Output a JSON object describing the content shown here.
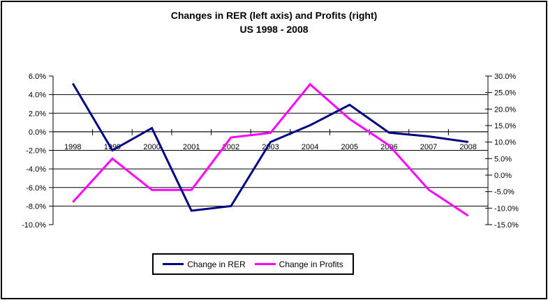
{
  "title": {
    "line1": "Changes in RER (left axis) and Profits (right)",
    "line2": "US 1998 - 2008"
  },
  "chart_data": {
    "type": "line",
    "categories": [
      "1998",
      "1999",
      "2000",
      "2001",
      "2002",
      "2003",
      "2004",
      "2005",
      "2006",
      "2007",
      "2008"
    ],
    "series": [
      {
        "name": "Change in RER",
        "axis": "left",
        "color": "#000080",
        "values": [
          5.2,
          -2.0,
          0.4,
          -8.5,
          -8.0,
          -1.1,
          0.7,
          2.9,
          -0.1,
          -0.5,
          -1.1
        ]
      },
      {
        "name": "Change in Profits",
        "axis": "right",
        "color": "#FF00FF",
        "values": [
          -8.2,
          5.0,
          -4.5,
          -4.5,
          11.4,
          12.8,
          27.5,
          17.0,
          9.0,
          -4.4,
          -12.3
        ]
      }
    ],
    "axes": {
      "left": {
        "min": -10,
        "max": 6,
        "step": 2,
        "tick_labels": [
          "6.0%",
          "4.0%",
          "2.0%",
          "0.0%",
          "-2.0%",
          "-4.0%",
          "-6.0%",
          "-8.0%",
          "-10.0%"
        ]
      },
      "right": {
        "min": -15,
        "max": 30,
        "step": 5,
        "tick_labels": [
          "30.0%",
          "25.0%",
          "20.0%",
          "15.0%",
          "10.0%",
          "5.0%",
          "0.0%",
          "-5.0%",
          "-10.0%",
          "-15.0%"
        ]
      }
    },
    "grid": "horizontal-major-left-axis",
    "legend_position": "bottom-center"
  },
  "colors": {
    "rer": "#000080",
    "profits": "#FF00FF",
    "axis": "#000000",
    "background": "#FFFFFF"
  }
}
